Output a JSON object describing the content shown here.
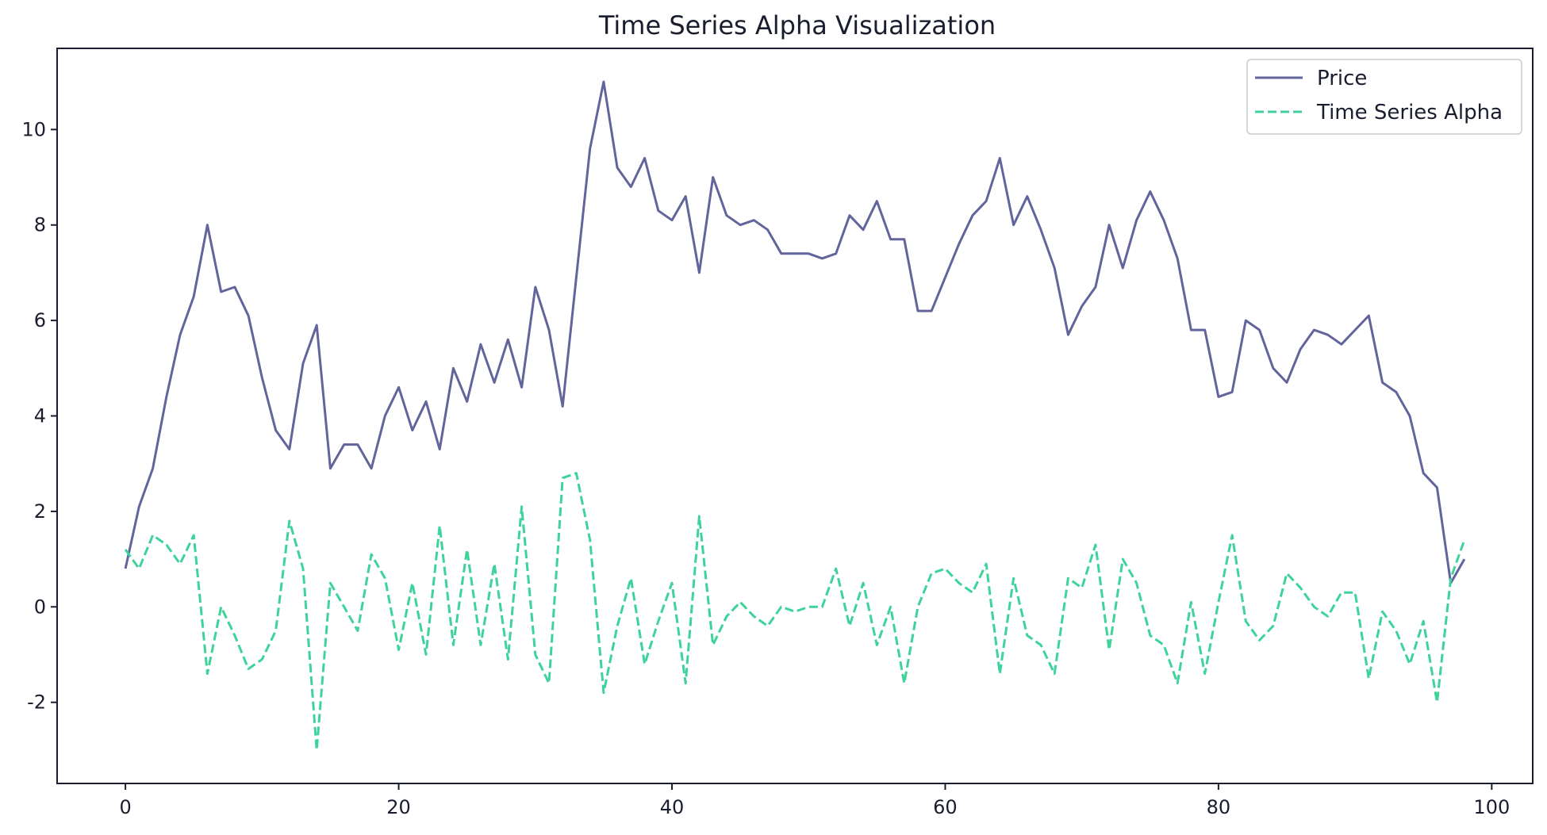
{
  "chart_data": {
    "type": "line",
    "title": "Time Series Alpha Visualization",
    "xlabel": "",
    "ylabel": "",
    "xlim": [
      -5,
      103
    ],
    "ylim": [
      -3.7,
      11.7
    ],
    "xticks": [
      0,
      20,
      40,
      60,
      80,
      100
    ],
    "yticks": [
      -2,
      0,
      2,
      4,
      6,
      8,
      10
    ],
    "grid": false,
    "legend": "top-right",
    "x": [
      0,
      1,
      2,
      3,
      4,
      5,
      6,
      7,
      8,
      9,
      10,
      11,
      12,
      13,
      14,
      15,
      16,
      17,
      18,
      19,
      20,
      21,
      22,
      23,
      24,
      25,
      26,
      27,
      28,
      29,
      30,
      31,
      32,
      33,
      34,
      35,
      36,
      37,
      38,
      39,
      40,
      41,
      42,
      43,
      44,
      45,
      46,
      47,
      48,
      49,
      50,
      51,
      52,
      53,
      54,
      55,
      56,
      57,
      58,
      59,
      60,
      61,
      62,
      63,
      64,
      65,
      66,
      67,
      68,
      69,
      70,
      71,
      72,
      73,
      74,
      75,
      76,
      77,
      78,
      79,
      80,
      81,
      82,
      83,
      84,
      85,
      86,
      87,
      88,
      89,
      90,
      91,
      92,
      93,
      94,
      95,
      96,
      97,
      98
    ],
    "series": [
      {
        "name": "Price",
        "color": "#62659b",
        "style": "solid",
        "values": [
          0.8,
          2.1,
          2.9,
          4.4,
          5.7,
          6.5,
          8.0,
          6.6,
          6.7,
          6.1,
          4.8,
          3.7,
          3.3,
          5.1,
          5.9,
          2.9,
          3.4,
          3.4,
          2.9,
          4.0,
          4.6,
          3.7,
          4.3,
          3.3,
          5.0,
          4.3,
          5.5,
          4.7,
          5.6,
          4.6,
          6.7,
          5.8,
          4.2,
          6.9,
          9.6,
          11.0,
          9.2,
          8.8,
          9.4,
          8.3,
          8.1,
          8.6,
          7.0,
          9.0,
          8.2,
          8.0,
          8.1,
          7.9,
          7.4,
          7.4,
          7.4,
          7.3,
          7.4,
          8.2,
          7.9,
          8.5,
          7.7,
          7.7,
          6.2,
          6.2,
          6.9,
          7.6,
          8.2,
          8.5,
          9.4,
          8.0,
          8.6,
          7.9,
          7.1,
          5.7,
          6.3,
          6.7,
          8.0,
          7.1,
          8.1,
          8.7,
          8.1,
          7.3,
          5.8,
          5.8,
          4.4,
          4.5,
          6.0,
          5.8,
          5.0,
          4.7,
          5.4,
          5.8,
          5.7,
          5.5,
          5.8,
          6.1,
          4.7,
          4.5,
          4.0,
          2.8,
          2.5,
          0.5,
          1.0
        ]
      },
      {
        "name": "Time Series Alpha",
        "color": "#3dd39b",
        "style": "dashed",
        "values": [
          1.2,
          0.8,
          1.5,
          1.3,
          0.9,
          1.5,
          -1.4,
          0.0,
          -0.6,
          -1.3,
          -1.1,
          -0.5,
          1.8,
          0.8,
          -3.0,
          0.5,
          0.0,
          -0.5,
          1.1,
          0.6,
          -0.9,
          0.5,
          -1.0,
          1.7,
          -0.8,
          1.2,
          -0.8,
          0.9,
          -1.1,
          2.1,
          -1.0,
          -1.6,
          2.7,
          2.8,
          1.4,
          -1.8,
          -0.4,
          0.6,
          -1.2,
          -0.3,
          0.5,
          -1.6,
          1.9,
          -0.8,
          -0.2,
          0.1,
          -0.2,
          -0.4,
          0.0,
          -0.1,
          0.0,
          0.0,
          0.8,
          -0.4,
          0.5,
          -0.8,
          0.0,
          -1.6,
          0.0,
          0.7,
          0.8,
          0.5,
          0.3,
          0.9,
          -1.4,
          0.6,
          -0.6,
          -0.8,
          -1.4,
          0.6,
          0.4,
          1.3,
          -0.9,
          1.0,
          0.5,
          -0.6,
          -0.8,
          -1.6,
          0.1,
          -1.4,
          0.1,
          1.5,
          -0.3,
          -0.7,
          -0.4,
          0.7,
          0.4,
          0.0,
          -0.2,
          0.3,
          0.3,
          -1.5,
          -0.1,
          -0.5,
          -1.2,
          -0.3,
          -2.0,
          0.6,
          1.4
        ]
      }
    ]
  }
}
